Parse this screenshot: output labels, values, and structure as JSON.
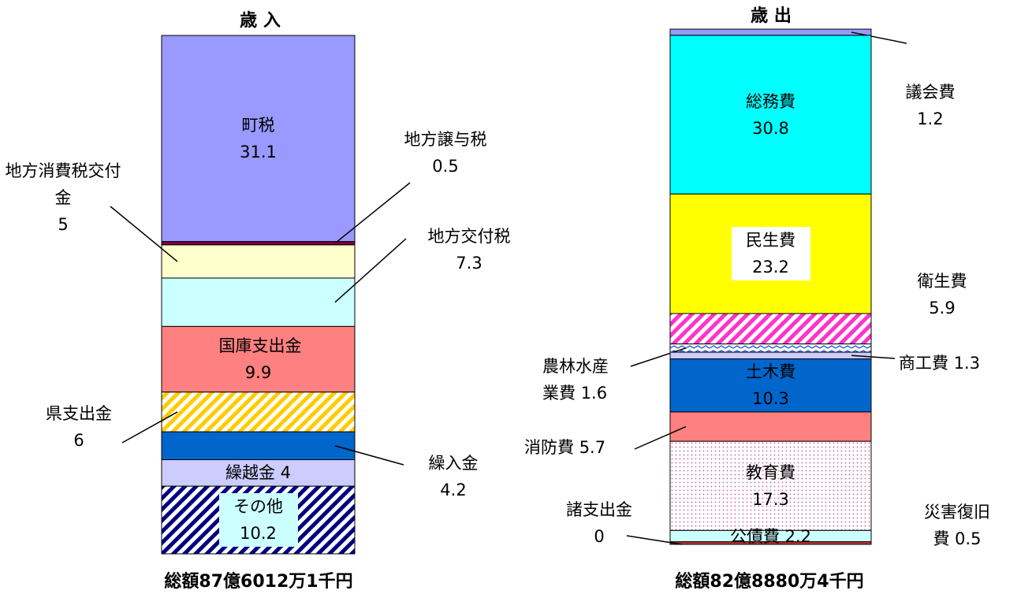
{
  "chart_data": [
    {
      "type": "stacked-bar",
      "title": "歳 入",
      "total_label": "総額87億6012万1千円",
      "series": [
        {
          "name": "町税",
          "value": 31.1,
          "color": "#9999ff"
        },
        {
          "name": "地方譲与税",
          "value": 0.5,
          "color": "#800040"
        },
        {
          "name": "地方消費税交付金",
          "value": 5.0,
          "color": "#ffffcc"
        },
        {
          "name": "地方交付税",
          "value": 7.3,
          "color": "#ccffff"
        },
        {
          "name": "国庫支出金",
          "value": 9.9,
          "color": "#ff8080"
        },
        {
          "name": "県支出金",
          "value": 6.0,
          "color": "#ffcc00",
          "pattern": "hatch"
        },
        {
          "name": "繰入金",
          "value": 4.2,
          "color": "#0066cc"
        },
        {
          "name": "繰越金",
          "value": 4.0,
          "color": "#ccccff"
        },
        {
          "name": "その他",
          "value": 10.2,
          "color": "#000080",
          "pattern": "hatch"
        }
      ]
    },
    {
      "type": "stacked-bar",
      "title": "歳 出",
      "total_label": "総額82億8880万4千円",
      "series": [
        {
          "name": "議会費",
          "value": 1.2,
          "color": "#9999ff"
        },
        {
          "name": "総務費",
          "value": 30.8,
          "color": "#00ffff"
        },
        {
          "name": "民生費",
          "value": 23.2,
          "color": "#ffff00"
        },
        {
          "name": "衛生費",
          "value": 5.9,
          "color": "#ff33cc",
          "pattern": "hatch"
        },
        {
          "name": "農林水産業費",
          "value": 1.6,
          "color": "#3366cc",
          "pattern": "zigzag"
        },
        {
          "name": "商工費",
          "value": 1.3,
          "color": "#ccccff"
        },
        {
          "name": "土木費",
          "value": 10.3,
          "color": "#0066cc"
        },
        {
          "name": "消防費",
          "value": 5.7,
          "color": "#ff8080"
        },
        {
          "name": "教育費",
          "value": 17.3,
          "color": "#cc6699",
          "pattern": "dots"
        },
        {
          "name": "公債費",
          "value": 2.2,
          "color": "#ccffff"
        },
        {
          "name": "災害復旧費",
          "value": 0.5,
          "color": "#cc3333"
        },
        {
          "name": "諸支出金",
          "value": 0.0,
          "color": "#660033"
        }
      ]
    }
  ]
}
